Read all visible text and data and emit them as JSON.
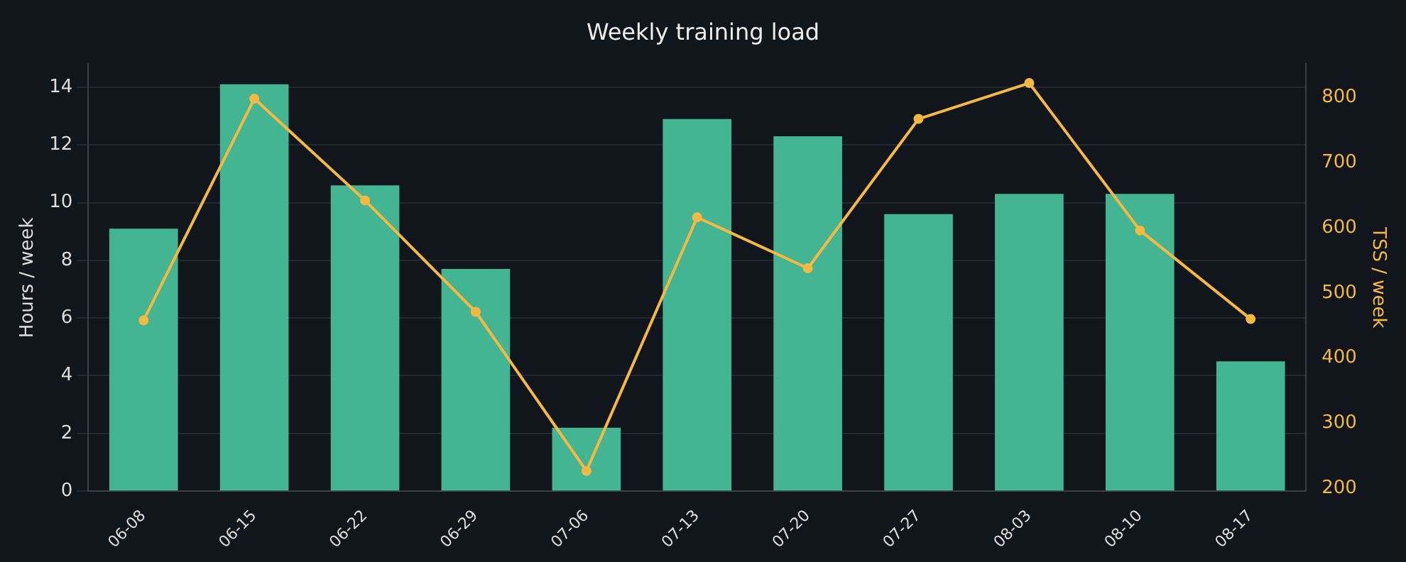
{
  "chart_data": {
    "type": "bar",
    "title": "Weekly training load",
    "categories": [
      "06-08",
      "06-15",
      "06-22",
      "06-29",
      "07-06",
      "07-13",
      "07-20",
      "07-27",
      "08-03",
      "08-10",
      "08-17"
    ],
    "series": [
      {
        "color": "#44b592",
        "values": [
          9.1,
          14.1,
          10.6,
          7.7,
          2.2,
          12.9,
          12.3,
          9.6,
          10.3,
          10.3,
          4.5
        ]
      },
      {
        "type": "line",
        "axis": "y2",
        "color": "#f5b942",
        "marker": "circle",
        "values": [
          458,
          798,
          642,
          471,
          227,
          616,
          538,
          767,
          822,
          596,
          460
        ]
      }
    ],
    "ylabel": "Hours / week",
    "y2label": "TSS / week",
    "ylim": [
      0,
      14.8
    ],
    "yticks": [
      0,
      2,
      4,
      6,
      8,
      10,
      12,
      14
    ],
    "y2lim": [
      196,
      851
    ],
    "y2ticks": [
      200,
      300,
      400,
      500,
      600,
      700,
      800
    ],
    "grid": "y",
    "legend": false
  }
}
